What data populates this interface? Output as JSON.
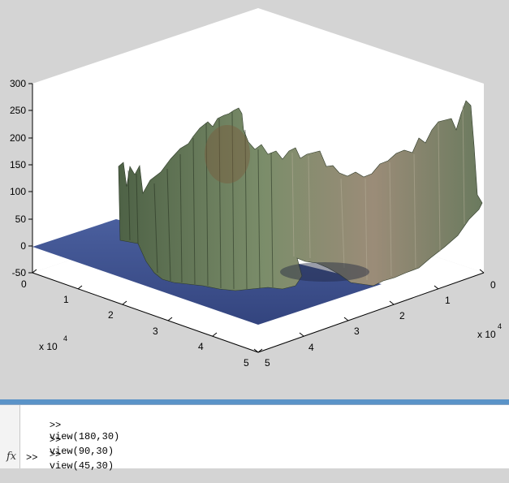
{
  "figure": {
    "z_ticks": [
      "300",
      "250",
      "200",
      "150",
      "100",
      "50",
      "0",
      "-50"
    ],
    "left_axis_ticks": [
      "0",
      "1",
      "2",
      "3",
      "4",
      "5"
    ],
    "right_axis_ticks": [
      "0",
      "1",
      "2",
      "3",
      "4",
      "5"
    ],
    "left_exponent": {
      "base": "x 10",
      "power": "4"
    },
    "right_exponent": {
      "base": "x 10",
      "power": "4"
    },
    "colors": {
      "background": "#d4d4d4",
      "axes_face": "#ffffff",
      "water": "#3a4d8c",
      "terrain_dark": "#3d4a35",
      "terrain_green": "#6f8a5e",
      "terrain_light": "#9aa88f",
      "terrain_brown": "#7a5a3c"
    }
  },
  "command_window": {
    "lines": [
      {
        "prompt": ">>",
        "command": "view(180,30)"
      },
      {
        "prompt": ">>",
        "command": "view(90,30)"
      },
      {
        "prompt": ">>",
        "command": "view(45,30)"
      }
    ],
    "current_prompt": ">>",
    "fx_label": "fx"
  }
}
